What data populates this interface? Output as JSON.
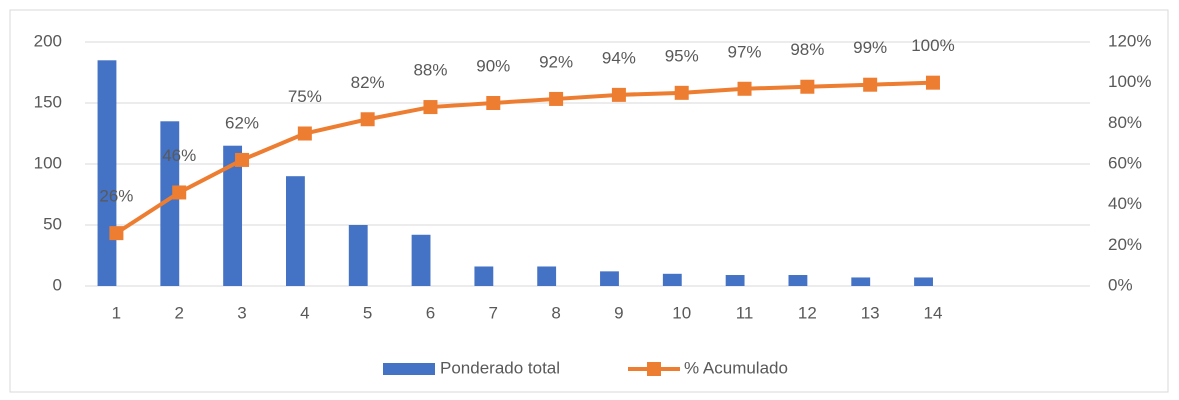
{
  "chart_data": {
    "type": "bar",
    "categories": [
      "1",
      "2",
      "3",
      "4",
      "5",
      "6",
      "7",
      "8",
      "9",
      "10",
      "11",
      "12",
      "13",
      "14",
      null,
      null
    ],
    "series": [
      {
        "name": "Ponderado total",
        "color": "#4472c4",
        "values": [
          185,
          135,
          115,
          90,
          50,
          42,
          16,
          16,
          12,
          10,
          9,
          9,
          7,
          7,
          null,
          null
        ]
      },
      {
        "name": "% Acumulado",
        "color": "#ed7d31",
        "axis": "y2",
        "type": "line",
        "values": [
          26,
          46,
          62,
          75,
          82,
          88,
          90,
          92,
          94,
          95,
          97,
          98,
          99,
          100,
          null,
          null
        ],
        "value_labels": [
          "26%",
          "46%",
          "62%",
          "75%",
          "82%",
          "88%",
          "90%",
          "92%",
          "94%",
          "95%",
          "97%",
          "98%",
          "99%",
          "100%",
          null,
          null
        ]
      }
    ],
    "ylim": [
      0,
      200
    ],
    "yticks": [
      0,
      50,
      100,
      150,
      200
    ],
    "y2lim": [
      0,
      120
    ],
    "y2ticks": [
      {
        "value": 0,
        "label": "0%"
      },
      {
        "value": 20,
        "label": "20%"
      },
      {
        "value": 40,
        "label": "40%"
      },
      {
        "value": 60,
        "label": "60%"
      },
      {
        "value": 80,
        "label": "80%"
      },
      {
        "value": 100,
        "label": "100%"
      },
      {
        "value": 120,
        "label": "120%"
      }
    ],
    "grid": true,
    "legend": "bottom"
  }
}
